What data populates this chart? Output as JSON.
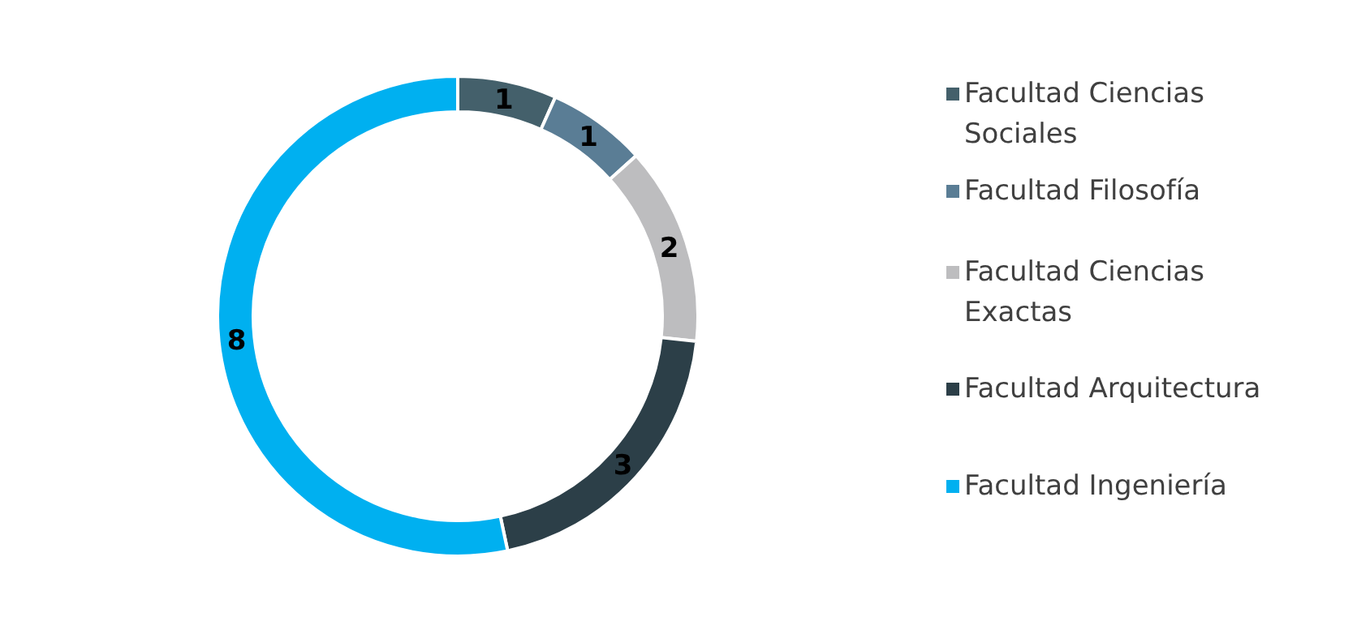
{
  "chart_data": {
    "type": "donut",
    "categories": [
      "Facultad Ciencias Sociales",
      "Facultad Filosofía",
      "Facultad Ciencias Exactas",
      "Facultad Arquitectura",
      "Facultad Ingeniería"
    ],
    "values": [
      1,
      1,
      2,
      3,
      8
    ],
    "colors": [
      "#44606b",
      "#5a7d95",
      "#bdbdbf",
      "#2c3f48",
      "#00b0f0"
    ],
    "data_labels": true,
    "legend": "right"
  }
}
